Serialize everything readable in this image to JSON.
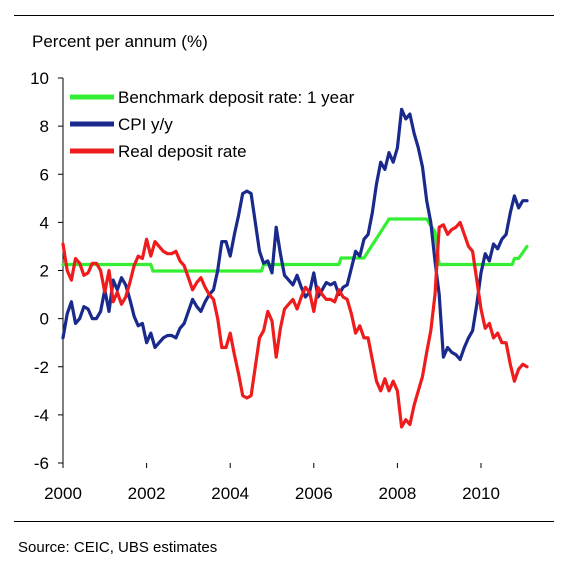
{
  "ylabel": "Percent per annum  (%)",
  "source": "Source: CEIC, UBS estimates",
  "chart_data": {
    "type": "line",
    "title": "",
    "xlabel": "",
    "ylabel": "Percent per annum  (%)",
    "xlim": [
      2000,
      2011.2
    ],
    "ylim": [
      -6,
      10
    ],
    "x_ticks": [
      "2000",
      "2002",
      "2004",
      "2006",
      "2008",
      "2010"
    ],
    "y_ticks": [
      "10",
      "8",
      "6",
      "4",
      "2",
      "0",
      "-2",
      "-4",
      "-6"
    ],
    "grid": false,
    "legend": "top-left",
    "series": [
      {
        "name": "Benchmark deposit rate: 1 year",
        "color": "#33ee33",
        "x": [
          2000,
          2002.1,
          2002.15,
          2004.75,
          2004.8,
          2006.6,
          2006.65,
          2007.2,
          2007.3,
          2007.4,
          2007.5,
          2007.6,
          2007.7,
          2007.8,
          2007.9,
          2008.7,
          2008.8,
          2008.9,
          2009,
          2010.75,
          2010.8,
          2010.9,
          2011,
          2011.1
        ],
        "values": [
          2.25,
          2.25,
          1.98,
          1.98,
          2.25,
          2.25,
          2.52,
          2.52,
          2.79,
          3.06,
          3.33,
          3.6,
          3.87,
          4.14,
          4.14,
          4.14,
          3.87,
          3.6,
          2.25,
          2.25,
          2.5,
          2.5,
          2.75,
          3
        ]
      },
      {
        "name": "CPI y/y",
        "color": "#1a2a8c",
        "x": [
          2000,
          2000.1,
          2000.2,
          2000.3,
          2000.4,
          2000.5,
          2000.6,
          2000.7,
          2000.8,
          2000.9,
          2001,
          2001.1,
          2001.2,
          2001.3,
          2001.4,
          2001.5,
          2001.6,
          2001.7,
          2001.8,
          2001.9,
          2002,
          2002.1,
          2002.2,
          2002.3,
          2002.4,
          2002.5,
          2002.6,
          2002.7,
          2002.8,
          2002.9,
          2003,
          2003.1,
          2003.2,
          2003.3,
          2003.4,
          2003.5,
          2003.6,
          2003.7,
          2003.8,
          2003.9,
          2004,
          2004.1,
          2004.2,
          2004.3,
          2004.4,
          2004.5,
          2004.6,
          2004.7,
          2004.8,
          2004.9,
          2005,
          2005.1,
          2005.2,
          2005.3,
          2005.4,
          2005.5,
          2005.6,
          2005.7,
          2005.8,
          2005.9,
          2006,
          2006.1,
          2006.2,
          2006.3,
          2006.4,
          2006.5,
          2006.6,
          2006.7,
          2006.8,
          2006.9,
          2007,
          2007.1,
          2007.2,
          2007.3,
          2007.4,
          2007.5,
          2007.6,
          2007.7,
          2007.8,
          2007.9,
          2008,
          2008.1,
          2008.2,
          2008.3,
          2008.4,
          2008.5,
          2008.6,
          2008.7,
          2008.8,
          2008.9,
          2009,
          2009.1,
          2009.2,
          2009.3,
          2009.4,
          2009.5,
          2009.6,
          2009.7,
          2009.8,
          2009.9,
          2010,
          2010.1,
          2010.2,
          2010.3,
          2010.4,
          2010.5,
          2010.6,
          2010.7,
          2010.8,
          2010.9,
          2011,
          2011.1
        ],
        "values": [
          -0.8,
          0.2,
          0.7,
          -0.2,
          0,
          0.5,
          0.4,
          0,
          0,
          0.3,
          1.2,
          0.3,
          1.6,
          1.2,
          1.7,
          1.4,
          0.8,
          0.1,
          -0.3,
          -0.2,
          -1,
          -0.6,
          -1.2,
          -1,
          -0.8,
          -0.7,
          -0.7,
          -0.8,
          -0.4,
          -0.2,
          0.3,
          0.8,
          0.5,
          0.3,
          0.7,
          1,
          1.2,
          2,
          3.2,
          3.2,
          2.6,
          3.5,
          4.3,
          5.2,
          5.3,
          5.2,
          4,
          2.8,
          2.3,
          2.4,
          1.9,
          3.8,
          2.7,
          1.8,
          1.6,
          1.4,
          1.8,
          1.3,
          0.9,
          1.1,
          1.9,
          0.9,
          1.2,
          1.5,
          1.4,
          1.5,
          1,
          1.3,
          1.4,
          2.1,
          2.8,
          2.6,
          3.3,
          3.5,
          4.4,
          5.6,
          6.5,
          6.2,
          6.9,
          6.5,
          7.1,
          8.7,
          8.3,
          8.5,
          7.7,
          7.1,
          6.3,
          4.9,
          4,
          2.4,
          1,
          -1.6,
          -1.2,
          -1.4,
          -1.5,
          -1.7,
          -1.2,
          -0.8,
          -0.5,
          0.6,
          1.9,
          2.7,
          2.4,
          3.1,
          2.9,
          3.3,
          3.5,
          4.4,
          5.1,
          4.6,
          4.9,
          4.9
        ]
      },
      {
        "name": "Real deposit rate",
        "color": "#ee1c1c",
        "x": [
          2000,
          2000.1,
          2000.2,
          2000.3,
          2000.4,
          2000.5,
          2000.6,
          2000.7,
          2000.8,
          2000.9,
          2001,
          2001.1,
          2001.2,
          2001.3,
          2001.4,
          2001.5,
          2001.6,
          2001.7,
          2001.8,
          2001.9,
          2002,
          2002.1,
          2002.2,
          2002.3,
          2002.4,
          2002.5,
          2002.6,
          2002.7,
          2002.8,
          2002.9,
          2003,
          2003.1,
          2003.2,
          2003.3,
          2003.4,
          2003.5,
          2003.6,
          2003.7,
          2003.8,
          2003.9,
          2004,
          2004.1,
          2004.2,
          2004.3,
          2004.4,
          2004.5,
          2004.6,
          2004.7,
          2004.8,
          2004.9,
          2005,
          2005.1,
          2005.2,
          2005.3,
          2005.4,
          2005.5,
          2005.6,
          2005.7,
          2005.8,
          2005.9,
          2006,
          2006.1,
          2006.2,
          2006.3,
          2006.4,
          2006.5,
          2006.6,
          2006.7,
          2006.8,
          2006.9,
          2007,
          2007.1,
          2007.2,
          2007.3,
          2007.4,
          2007.5,
          2007.6,
          2007.7,
          2007.8,
          2007.9,
          2008,
          2008.1,
          2008.2,
          2008.3,
          2008.4,
          2008.5,
          2008.6,
          2008.7,
          2008.8,
          2008.9,
          2009,
          2009.1,
          2009.2,
          2009.3,
          2009.4,
          2009.5,
          2009.6,
          2009.7,
          2009.8,
          2009.9,
          2010,
          2010.1,
          2010.2,
          2010.3,
          2010.4,
          2010.5,
          2010.6,
          2010.7,
          2010.8,
          2010.9,
          2011,
          2011.1
        ],
        "values": [
          3.1,
          2,
          1.6,
          2.5,
          2.3,
          1.8,
          1.9,
          2.3,
          2.3,
          2,
          1.1,
          2,
          0.7,
          1.1,
          0.6,
          0.9,
          1.5,
          2.2,
          2.6,
          2.5,
          3.3,
          2.6,
          3.2,
          3,
          2.8,
          2.7,
          2.7,
          2.8,
          2.4,
          2.2,
          1.7,
          1.2,
          1.5,
          1.7,
          1.3,
          1,
          0.8,
          0,
          -1.2,
          -1.2,
          -0.6,
          -1.5,
          -2.3,
          -3.2,
          -3.3,
          -3.2,
          -2,
          -0.8,
          -0.5,
          0.3,
          -0.1,
          -1.6,
          -0.4,
          0.4,
          0.6,
          0.8,
          0.4,
          0.9,
          1.3,
          1.1,
          0.3,
          1.3,
          1,
          0.8,
          0.8,
          0.7,
          1.2,
          0.9,
          0.8,
          0.2,
          -0.6,
          -0.3,
          -0.8,
          -0.8,
          -1.7,
          -2.6,
          -3,
          -2.5,
          -3,
          -2.6,
          -3,
          -4.5,
          -4.2,
          -4.4,
          -3.6,
          -3,
          -2.4,
          -1.4,
          -0.5,
          1,
          3.8,
          3.9,
          3.5,
          3.7,
          3.8,
          4,
          3.5,
          3,
          2.8,
          1.6,
          0.4,
          -0.4,
          -0.2,
          -0.8,
          -0.6,
          -1,
          -1,
          -1.9,
          -2.6,
          -2.1,
          -1.9,
          -2
        ]
      }
    ]
  }
}
